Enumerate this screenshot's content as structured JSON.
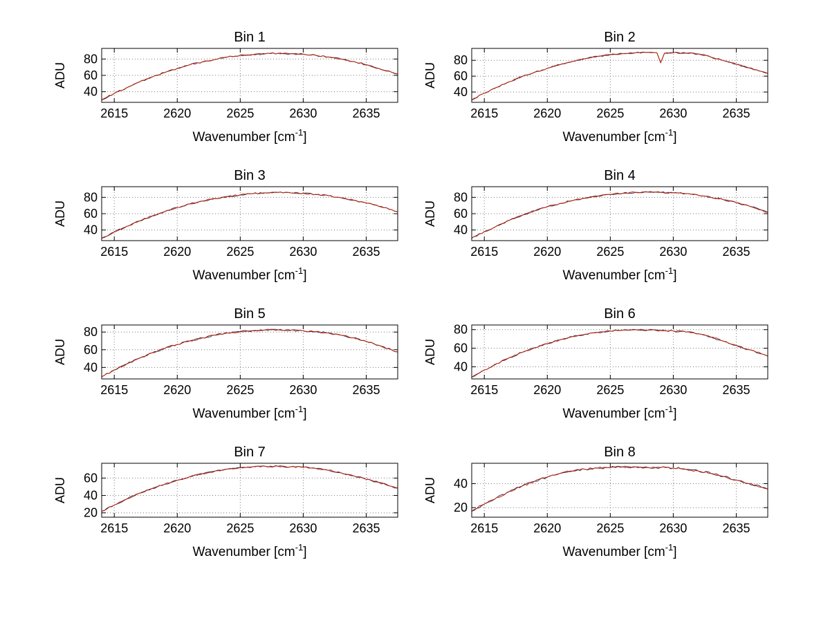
{
  "figure": {
    "background": "#ffffff",
    "text_color": "#000000",
    "axis_color": "#000000",
    "grid_color": "#777777"
  },
  "chart_data": {
    "type": "line",
    "layout": {
      "rows": 4,
      "cols": 2,
      "grid": "dotted"
    },
    "ylabel": "ADU",
    "xlabel": {
      "text": "Wavenumber [cm",
      "sup": "-1",
      "close": "]"
    },
    "xlabel_plain": "Wavenumber [cm^-1]",
    "xlim": [
      2614,
      2637.5
    ],
    "x_ticks": [
      2615,
      2620,
      2625,
      2630,
      2635
    ],
    "line_color_primary": "#bb2200",
    "line_color_secondary": "#333366",
    "noise_amplitude": 0.9,
    "x_values": [
      2614,
      2615,
      2616,
      2617,
      2618,
      2619,
      2620,
      2621,
      2622,
      2623,
      2624,
      2625,
      2626,
      2627,
      2628,
      2629,
      2630,
      2631,
      2632,
      2633,
      2634,
      2635,
      2636,
      2637,
      2637.5
    ],
    "subplots": [
      {
        "title": "Bin 1",
        "y_ticks": [
          40,
          60,
          80
        ],
        "ylim": [
          27,
          93
        ],
        "y": [
          30,
          38,
          45,
          52,
          58,
          63.5,
          68.5,
          73,
          76.5,
          79.5,
          82.5,
          84.5,
          85.5,
          86.5,
          87,
          86.5,
          86,
          84.5,
          82.5,
          80,
          77,
          73,
          68.5,
          64,
          61.5
        ]
      },
      {
        "title": "Bin 2",
        "y_ticks": [
          40,
          60,
          80
        ],
        "ylim": [
          27,
          95
        ],
        "x": [
          2614,
          2615,
          2616,
          2617,
          2618,
          2619,
          2620,
          2621,
          2622,
          2623,
          2624,
          2625,
          2626,
          2627,
          2628,
          2628.7,
          2629,
          2629.3,
          2630,
          2631,
          2632,
          2633,
          2634,
          2635,
          2636,
          2637,
          2637.5
        ],
        "y": [
          30,
          38.5,
          46,
          53,
          59.5,
          65,
          70,
          74.5,
          78.5,
          82,
          85,
          87,
          88.5,
          89.5,
          90,
          89.5,
          77,
          89,
          89.5,
          89,
          88,
          84,
          79.5,
          75,
          70.5,
          66,
          63.5
        ],
        "annotation": "narrow downward spike near 2629"
      },
      {
        "title": "Bin 3",
        "y_ticks": [
          40,
          60,
          80
        ],
        "ylim": [
          27,
          93
        ],
        "y": [
          30,
          37.5,
          44.5,
          51,
          57,
          62.5,
          67.5,
          72,
          75.5,
          78.5,
          81,
          83,
          84.5,
          85.5,
          86,
          85.5,
          85,
          83.5,
          82,
          79.5,
          76.5,
          73,
          69,
          65,
          62.5
        ]
      },
      {
        "title": "Bin 4",
        "y_ticks": [
          40,
          60,
          80
        ],
        "ylim": [
          27,
          93
        ],
        "y": [
          30,
          38,
          45,
          52,
          58,
          63.5,
          68.5,
          72.5,
          76,
          79,
          81.5,
          83.5,
          85,
          86,
          86.5,
          86,
          85.5,
          84.5,
          82.5,
          80,
          77,
          73.5,
          69.5,
          64.5,
          61.5
        ]
      },
      {
        "title": "Bin 5",
        "y_ticks": [
          40,
          60,
          80
        ],
        "ylim": [
          27,
          88
        ],
        "y": [
          29.5,
          37,
          44,
          50.5,
          56.5,
          61.5,
          66,
          70,
          73.5,
          76.5,
          79,
          80.5,
          81.5,
          82.5,
          82.5,
          82,
          81.5,
          80.5,
          79,
          76.5,
          73.5,
          69.5,
          65,
          60,
          57.5
        ]
      },
      {
        "title": "Bin 6",
        "y_ticks": [
          40,
          60,
          80
        ],
        "ylim": [
          27,
          85
        ],
        "y": [
          29,
          36.5,
          43.5,
          50,
          55.5,
          60.5,
          65,
          69,
          72.5,
          75,
          77,
          78.5,
          79.5,
          80,
          79.5,
          79,
          78.5,
          77.5,
          75.5,
          72,
          67.5,
          63,
          58.5,
          54,
          51.5
        ]
      },
      {
        "title": "Bin 7",
        "y_ticks": [
          20,
          40,
          60
        ],
        "ylim": [
          15,
          77
        ],
        "y": [
          22,
          29,
          36,
          42.5,
          48,
          53,
          57.5,
          61.5,
          65,
          68,
          70.5,
          72,
          73,
          73.5,
          73.5,
          73,
          72.5,
          71,
          69,
          66,
          62.5,
          58.5,
          55,
          50.5,
          48.5
        ]
      },
      {
        "title": "Bin 8",
        "y_ticks": [
          20,
          40
        ],
        "ylim": [
          12,
          57
        ],
        "y": [
          17,
          23,
          28.5,
          33.5,
          38,
          42,
          45.5,
          48.5,
          50.5,
          52,
          53,
          53.5,
          54,
          54,
          53.5,
          53.5,
          53,
          52,
          50.5,
          48.5,
          46,
          43,
          40,
          37,
          35.5
        ]
      }
    ]
  }
}
